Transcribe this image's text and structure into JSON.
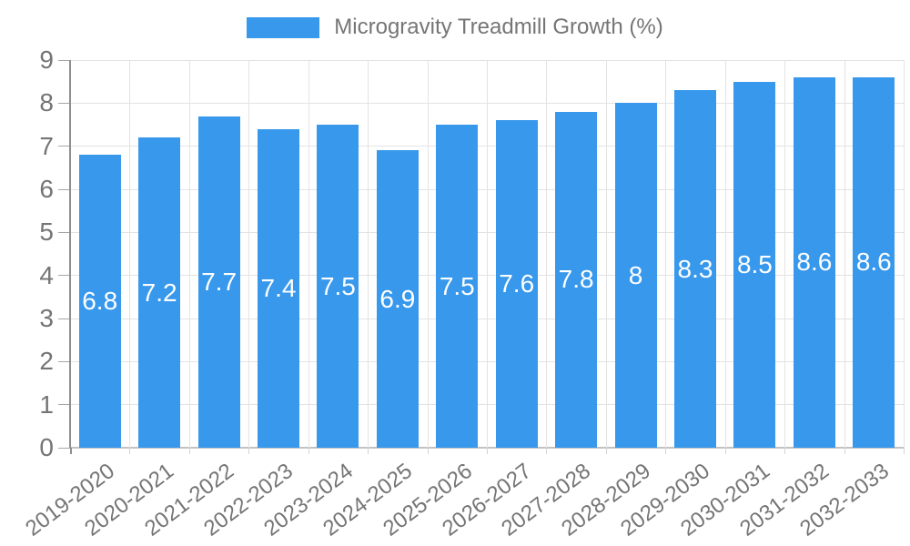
{
  "legend": {
    "label": "Microgravity Treadmill Growth (%)"
  },
  "chart_data": {
    "type": "bar",
    "title": "Microgravity Treadmill Growth (%)",
    "categories": [
      "2019-2020",
      "2020-2021",
      "2021-2022",
      "2022-2023",
      "2023-2024",
      "2024-2025",
      "2025-2026",
      "2026-2027",
      "2027-2028",
      "2028-2029",
      "2029-2030",
      "2030-2031",
      "2031-2032",
      "2032-2033"
    ],
    "values": [
      6.8,
      7.2,
      7.7,
      7.4,
      7.5,
      6.9,
      7.5,
      7.6,
      7.8,
      8,
      8.3,
      8.5,
      8.6,
      8.6
    ],
    "xlabel": "",
    "ylabel": "",
    "ylim": [
      0,
      9
    ],
    "yticks": [
      0,
      1,
      2,
      3,
      4,
      5,
      6,
      7,
      8,
      9
    ],
    "grid": true,
    "legend_position": "top",
    "value_label_position": "inside-center"
  },
  "colors": {
    "bar": "#3898ec",
    "grid": "#e3e3e3",
    "zero_line": "#c2c2c2",
    "axis_line": "#8f8f8f",
    "y_tick": "#a6a6a6",
    "x_tick": "#d4d4d4",
    "label_text": "#757575",
    "value_label_text": "#ffffff",
    "background": "#ffffff"
  }
}
